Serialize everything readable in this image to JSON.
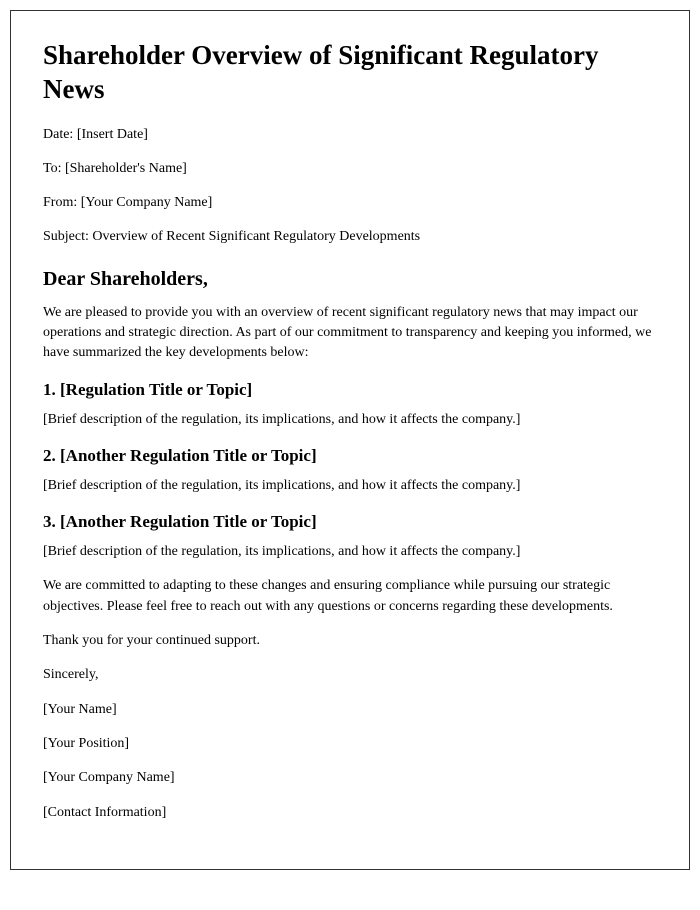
{
  "title": "Shareholder Overview of Significant Regulatory News",
  "meta": {
    "date": "Date: [Insert Date]",
    "to": "To: [Shareholder's Name]",
    "from": "From: [Your Company Name]",
    "subject": "Subject: Overview of Recent Significant Regulatory Developments"
  },
  "salutation": "Dear Shareholders,",
  "intro": "We are pleased to provide you with an overview of recent significant regulatory news that may impact our operations and strategic direction. As part of our commitment to transparency and keeping you informed, we have summarized the key developments below:",
  "sections": {
    "s1": {
      "heading": "1. [Regulation Title or Topic]",
      "body": "[Brief description of the regulation, its implications, and how it affects the company.]"
    },
    "s2": {
      "heading": "2. [Another Regulation Title or Topic]",
      "body": "[Brief description of the regulation, its implications, and how it affects the company.]"
    },
    "s3": {
      "heading": "3. [Another Regulation Title or Topic]",
      "body": "[Brief description of the regulation, its implications, and how it affects the company.]"
    }
  },
  "commitment": "We are committed to adapting to these changes and ensuring compliance while pursuing our strategic objectives. Please feel free to reach out with any questions or concerns regarding these developments.",
  "thanks": "Thank you for your continued support.",
  "closing": "Sincerely,",
  "sig": {
    "name": "[Your Name]",
    "position": "[Your Position]",
    "company": "[Your Company Name]",
    "contact": "[Contact Information]"
  },
  "style": {
    "font_family": "Georgia, Times New Roman, serif",
    "title_fontsize": 27,
    "h2_fontsize": 20,
    "h3_fontsize": 17,
    "body_fontsize": 14,
    "text_color": "#000000",
    "background_color": "#ffffff",
    "border_color": "#333333"
  }
}
